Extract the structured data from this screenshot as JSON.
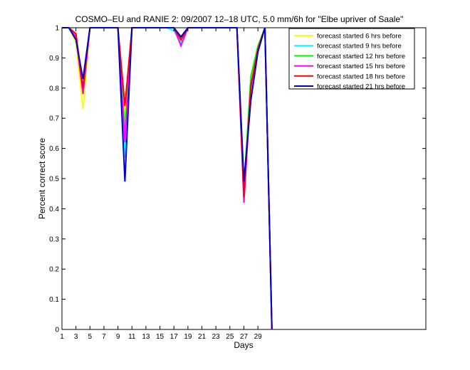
{
  "chart_data": {
    "type": "line",
    "title": "COSMO–EU and RANIE 2: 09/2007 12–18 UTC, 5.0 mm/6h for \"Elbe upriver of Saale\"",
    "xlabel": "Days",
    "ylabel": "Percent correct score",
    "xlim": [
      1,
      53
    ],
    "ylim": [
      0,
      1
    ],
    "xticks": [
      1,
      3,
      5,
      7,
      9,
      11,
      13,
      15,
      17,
      19,
      21,
      23,
      25,
      27,
      29
    ],
    "yticks": [
      0,
      0.1,
      0.2,
      0.3,
      0.4,
      0.5,
      0.6,
      0.7,
      0.8,
      0.9,
      1
    ],
    "ytick_labels": [
      "0",
      "0.1",
      "0.2",
      "0.3",
      "0.4",
      "0.5",
      "0.6",
      "0.7",
      "0.8",
      "0.9",
      "1"
    ],
    "legend_position": "top-right",
    "grid": false,
    "x": [
      1,
      2,
      3,
      4,
      5,
      6,
      7,
      8,
      9,
      10,
      11,
      12,
      13,
      14,
      15,
      16,
      17,
      18,
      19,
      20,
      21,
      22,
      23,
      24,
      25,
      26,
      27,
      28,
      29,
      30,
      31
    ],
    "series": [
      {
        "name": "forecast started 6 hrs before",
        "color": "#ffff00",
        "values": [
          1,
          1,
          0.95,
          0.73,
          1,
          1,
          1,
          1,
          1,
          0.7,
          1,
          1,
          1,
          1,
          1,
          1,
          1,
          0.96,
          1,
          1,
          1,
          1,
          1,
          1,
          1,
          1,
          0.46,
          0.82,
          0.93,
          1,
          0
        ]
      },
      {
        "name": "forecast started 9 hrs before",
        "color": "#00ffff",
        "values": [
          1,
          1,
          0.96,
          0.8,
          1,
          1,
          1,
          1,
          1,
          0.57,
          1,
          1,
          1,
          1,
          1,
          1,
          0.99,
          0.95,
          1,
          1,
          1,
          1,
          1,
          1,
          1,
          1,
          0.48,
          0.78,
          0.93,
          1,
          0
        ]
      },
      {
        "name": "forecast started 12 hrs before",
        "color": "#00ff00",
        "values": [
          1,
          1,
          0.97,
          0.8,
          1,
          1,
          1,
          1,
          1,
          0.66,
          1,
          1,
          1,
          1,
          1,
          1,
          1,
          0.97,
          1,
          1,
          1,
          1,
          1,
          1,
          1,
          1,
          0.47,
          0.84,
          0.94,
          1,
          0
        ]
      },
      {
        "name": "forecast started 15 hrs before",
        "color": "#ff00ff",
        "values": [
          1,
          1,
          0.97,
          0.78,
          1,
          1,
          1,
          1,
          1,
          0.62,
          1,
          1,
          1,
          1,
          1,
          1,
          1,
          0.94,
          1,
          1,
          1,
          1,
          1,
          1,
          1,
          1,
          0.42,
          0.8,
          0.93,
          1,
          0
        ]
      },
      {
        "name": "forecast started 18 hrs before",
        "color": "#ff0000",
        "values": [
          1,
          1,
          0.98,
          0.8,
          1,
          1,
          1,
          1,
          1,
          0.74,
          1,
          1,
          1,
          1,
          1,
          1,
          1,
          0.96,
          1,
          1,
          1,
          1,
          1,
          1,
          1,
          1,
          0.44,
          0.81,
          0.93,
          1,
          0
        ]
      },
      {
        "name": "forecast started 21 hrs before",
        "color": "#0000cc",
        "values": [
          1,
          1,
          0.96,
          0.83,
          1,
          1,
          1,
          1,
          1,
          0.49,
          1,
          1,
          1,
          1,
          1,
          1,
          1,
          0.97,
          1,
          1,
          1,
          1,
          1,
          1,
          1,
          1,
          0.49,
          0.76,
          0.92,
          1,
          0
        ]
      }
    ]
  }
}
